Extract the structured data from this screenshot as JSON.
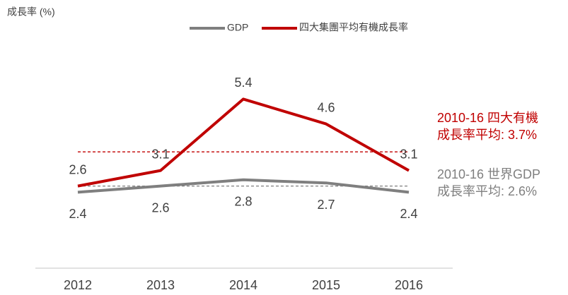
{
  "chart_data": {
    "type": "line",
    "y_label": "成長率 (%)",
    "categories": [
      "2012",
      "2013",
      "2014",
      "2015",
      "2016"
    ],
    "series": [
      {
        "name": "GDP",
        "color": "#7f7f7f",
        "values": [
          2.4,
          2.6,
          2.8,
          2.7,
          2.4
        ]
      },
      {
        "name": "四大集團平均有機成長率",
        "color": "#c00000",
        "values": [
          2.6,
          3.1,
          5.4,
          4.6,
          3.1
        ]
      }
    ],
    "ylim": [
      0,
      6
    ],
    "reference_lines": [
      {
        "value": 3.7,
        "color": "#c00000",
        "label": [
          "2010-16 四大有機",
          "成長率平均: 3.7%"
        ]
      },
      {
        "value": 2.6,
        "color": "#7f7f7f",
        "label": [
          "2010-16 世界GDP",
          "成長率平均: 2.6%"
        ]
      }
    ],
    "legend": "top"
  }
}
